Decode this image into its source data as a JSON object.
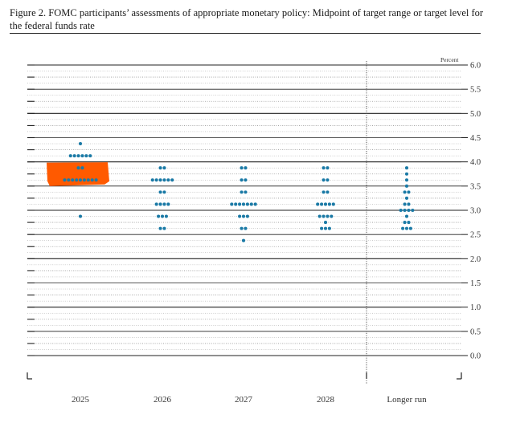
{
  "title": "Figure 2. FOMC participants’ assessments of appropriate monetary policy: Midpoint of target range or target level for the federal funds rate",
  "chart_data": {
    "type": "scatter",
    "unit_label": "Percent",
    "ylim": [
      0,
      6
    ],
    "yticks": [
      "6.0",
      "5.5",
      "5.0",
      "4.5",
      "4.0",
      "3.5",
      "3.0",
      "2.5",
      "2.0",
      "1.5",
      "1.0",
      "0.5",
      "0.0"
    ],
    "categories": [
      "2025",
      "2026",
      "2027",
      "2028",
      "Longer run"
    ],
    "dot_color": "#1b7aa6",
    "highlight_color": "#ff5a00",
    "dots": [
      {
        "category": "2025",
        "levels": [
          {
            "y": 4.375,
            "count": 1
          },
          {
            "y": 4.125,
            "count": 6
          },
          {
            "y": 3.875,
            "count": 2
          },
          {
            "y": 3.625,
            "count": 9
          },
          {
            "y": 2.875,
            "count": 1
          }
        ]
      },
      {
        "category": "2026",
        "levels": [
          {
            "y": 3.875,
            "count": 2
          },
          {
            "y": 3.625,
            "count": 6
          },
          {
            "y": 3.375,
            "count": 2
          },
          {
            "y": 3.125,
            "count": 4
          },
          {
            "y": 2.875,
            "count": 3
          },
          {
            "y": 2.625,
            "count": 2
          }
        ]
      },
      {
        "category": "2027",
        "levels": [
          {
            "y": 3.875,
            "count": 2
          },
          {
            "y": 3.625,
            "count": 2
          },
          {
            "y": 3.375,
            "count": 2
          },
          {
            "y": 3.125,
            "count": 7
          },
          {
            "y": 2.875,
            "count": 3
          },
          {
            "y": 2.625,
            "count": 2
          },
          {
            "y": 2.375,
            "count": 1
          }
        ]
      },
      {
        "category": "2028",
        "levels": [
          {
            "y": 3.875,
            "count": 2
          },
          {
            "y": 3.625,
            "count": 2
          },
          {
            "y": 3.375,
            "count": 2
          },
          {
            "y": 3.125,
            "count": 5
          },
          {
            "y": 2.875,
            "count": 4
          },
          {
            "y": 2.75,
            "count": 1
          },
          {
            "y": 2.625,
            "count": 3
          }
        ]
      },
      {
        "category": "Longer run",
        "levels": [
          {
            "y": 3.875,
            "count": 1
          },
          {
            "y": 3.75,
            "count": 1
          },
          {
            "y": 3.625,
            "count": 1
          },
          {
            "y": 3.5,
            "count": 1
          },
          {
            "y": 3.375,
            "count": 2
          },
          {
            "y": 3.25,
            "count": 1
          },
          {
            "y": 3.125,
            "count": 2
          },
          {
            "y": 3.0,
            "count": 4
          },
          {
            "y": 2.875,
            "count": 1
          },
          {
            "y": 2.75,
            "count": 2
          },
          {
            "y": 2.625,
            "count": 3
          }
        ]
      }
    ],
    "highlight": {
      "category": "2025",
      "y_from": 3.5,
      "y_to": 4.0
    }
  }
}
